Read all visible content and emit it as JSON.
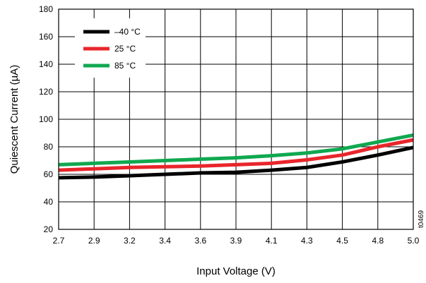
{
  "chart_data": {
    "type": "line",
    "xlabel": "Input Voltage (V)",
    "ylabel": "Quiescent Current (µA)",
    "x_ticks": [
      "2.7",
      "2.9",
      "3.2",
      "3.4",
      "3.6",
      "3.9",
      "4.1",
      "4.3",
      "4.5",
      "4.8",
      "5.0"
    ],
    "y_ticks": [
      "20",
      "40",
      "60",
      "80",
      "100",
      "120",
      "140",
      "160",
      "180"
    ],
    "ylim": [
      20,
      180
    ],
    "grid": true,
    "legend_position": "top-left",
    "annotation": "t0469",
    "series": [
      {
        "name": "–40 °C",
        "color": "#000000",
        "values": [
          57.5,
          58,
          59,
          60,
          61,
          61.5,
          63,
          65,
          69,
          74,
          79.5
        ]
      },
      {
        "name": "25 °C",
        "color": "#e8262b",
        "values": [
          63,
          64,
          65,
          65.5,
          66,
          67,
          68,
          70.5,
          74,
          80,
          85
        ]
      },
      {
        "name": "85 °C",
        "color": "#10a84f",
        "values": [
          67,
          68,
          69,
          70,
          71,
          72,
          73.5,
          75.5,
          78.5,
          83.5,
          88.5
        ]
      }
    ]
  }
}
